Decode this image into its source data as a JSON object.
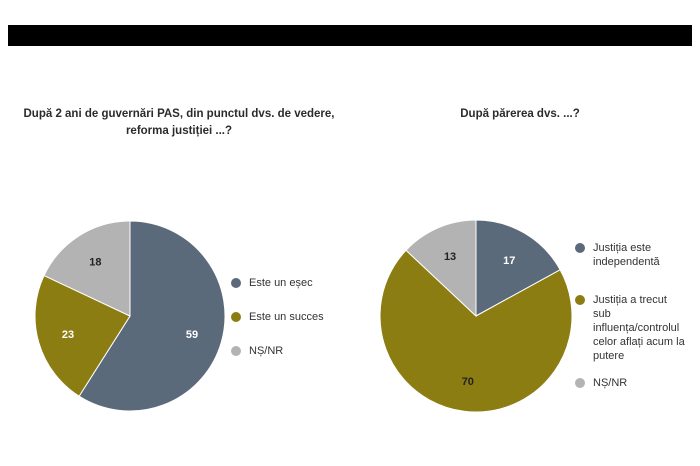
{
  "header_bar_color": "#000000",
  "chart_data": [
    {
      "type": "pie",
      "title": "După 2 ani de guvernări PAS, din punctul dvs. de vedere, reforma justiției ...?",
      "slices": [
        {
          "label": "Este un eșec",
          "value": 59,
          "color": "#5b6a7b"
        },
        {
          "label": "Este un succes",
          "value": 23,
          "color": "#8c7d12"
        },
        {
          "label": "NȘ/NR",
          "value": 18,
          "color": "#b3b3b3"
        }
      ],
      "legend_position": "right"
    },
    {
      "type": "pie",
      "title": "După părerea dvs. ...?",
      "slices": [
        {
          "label": "Justiția este independentă",
          "value": 17,
          "color": "#5b6a7b"
        },
        {
          "label": "Justiția a trecut sub influența/controlul celor aflați acum la putere",
          "value": 70,
          "color": "#8c7d12"
        },
        {
          "label": "NȘ/NR",
          "value": 13,
          "color": "#b3b3b3"
        }
      ],
      "legend_position": "right"
    }
  ]
}
